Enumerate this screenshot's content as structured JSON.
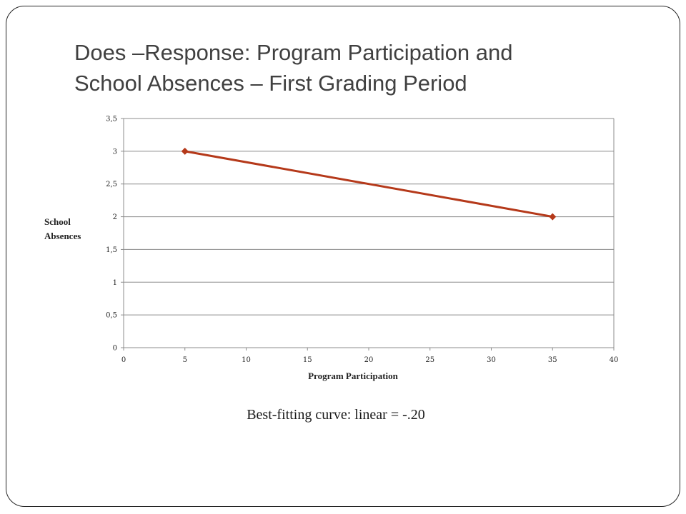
{
  "slide": {
    "title_line1": "Does –Response: Program Participation and",
    "title_line2": "School Absences – First Grading Period",
    "caption": "Best-fitting curve: linear = -.20"
  },
  "colors": {
    "series": "#b5391a",
    "grid": "#8c8c8c",
    "title": "#404040"
  },
  "chart_data": {
    "type": "line",
    "xlabel": "Program Participation",
    "ylabel_lines": [
      "School",
      "Absences"
    ],
    "xlim": [
      0,
      40
    ],
    "ylim": [
      0,
      3.5
    ],
    "x_ticks": [
      0,
      5,
      10,
      15,
      20,
      25,
      30,
      35,
      40
    ],
    "y_ticks": [
      0,
      0.5,
      1,
      1.5,
      2,
      2.5,
      3,
      3.5
    ],
    "x_tick_labels": [
      "0",
      "5",
      "10",
      "15",
      "20",
      "25",
      "30",
      "35",
      "40"
    ],
    "y_tick_labels": [
      "0",
      "0,5",
      "1",
      "1,5",
      "2",
      "2,5",
      "3",
      "3,5"
    ],
    "grid": "horizontal",
    "legend": "none",
    "series": [
      {
        "x": [
          5,
          35
        ],
        "y": [
          3,
          2
        ],
        "marker": "diamond"
      }
    ]
  }
}
